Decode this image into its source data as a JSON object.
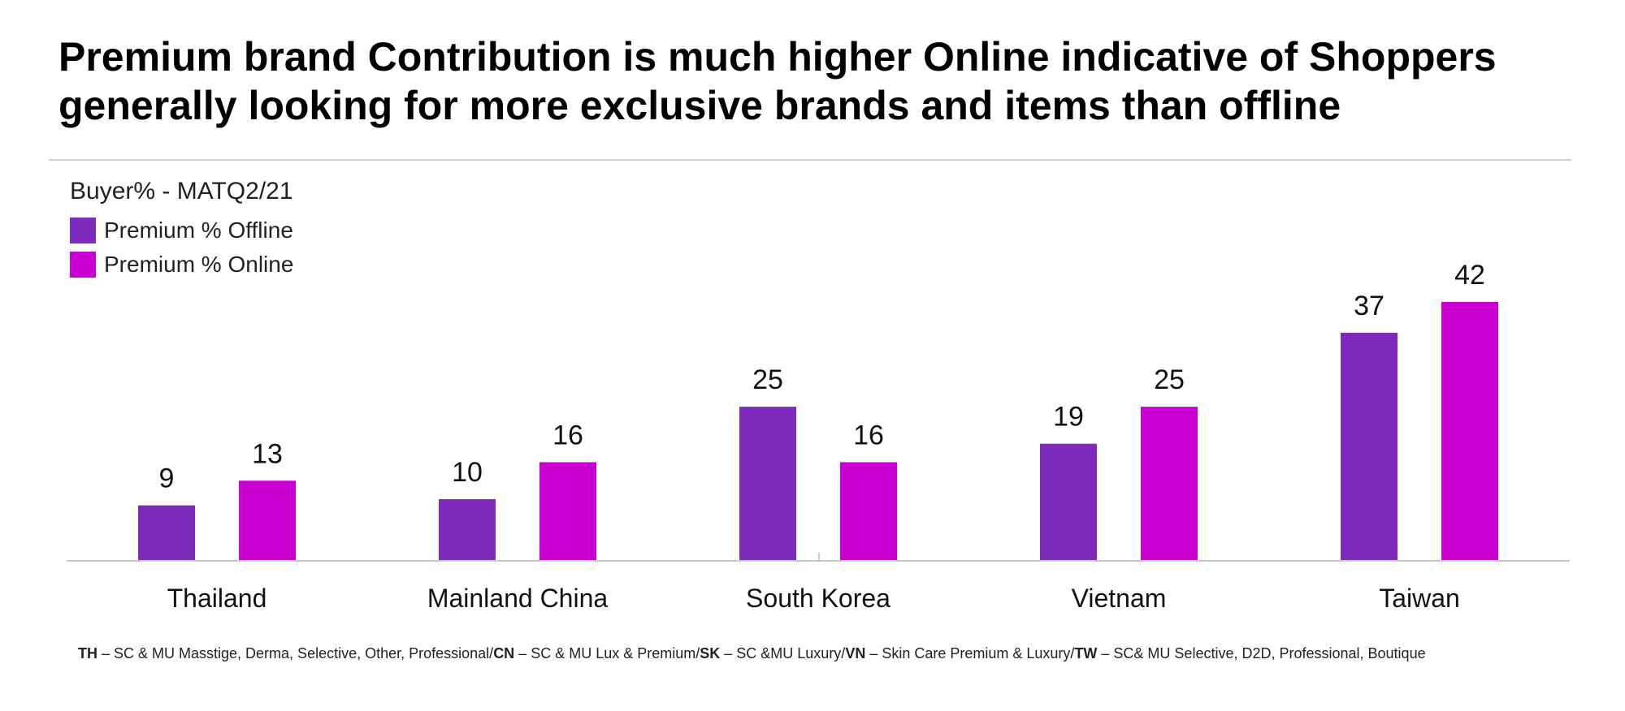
{
  "title_lines": [
    "Premium brand Contribution is much higher Online indicative of Shoppers",
    "generally looking for more exclusive brands and items than offline"
  ],
  "subtitle": "Buyer% - MATQ2/21",
  "footnote": [
    {
      "code": "TH",
      "text": " – SC & MU Masstige, Derma, Selective, Other, Professional/"
    },
    {
      "code": "CN",
      "text": " – SC & MU Lux & Premium/"
    },
    {
      "code": "SK",
      "text": " – SC &MU Luxury/"
    },
    {
      "code": "VN",
      "text": " – Skin Care Premium & Luxury/"
    },
    {
      "code": "TW",
      "text": " – SC& MU Selective, D2D, Professional, Boutique"
    }
  ],
  "chart_data": {
    "type": "bar",
    "title": "Premium brand Contribution is much higher Online indicative of Shoppers generally looking for more exclusive brands and items than offline",
    "xlabel": "",
    "ylabel": "",
    "categories": [
      "Thailand",
      "Mainland China",
      "South Korea",
      "Vietnam",
      "Taiwan"
    ],
    "series": [
      {
        "name": "Premium % Offline",
        "color": "#7e2bbd",
        "values": [
          9,
          10,
          25,
          19,
          37
        ]
      },
      {
        "name": "Premium % Online",
        "color": "#c800d2",
        "values": [
          13,
          16,
          16,
          25,
          42
        ]
      }
    ],
    "ylim": [
      0,
      42
    ],
    "grid": false,
    "data_labels": true,
    "legend_position": "top-left"
  }
}
